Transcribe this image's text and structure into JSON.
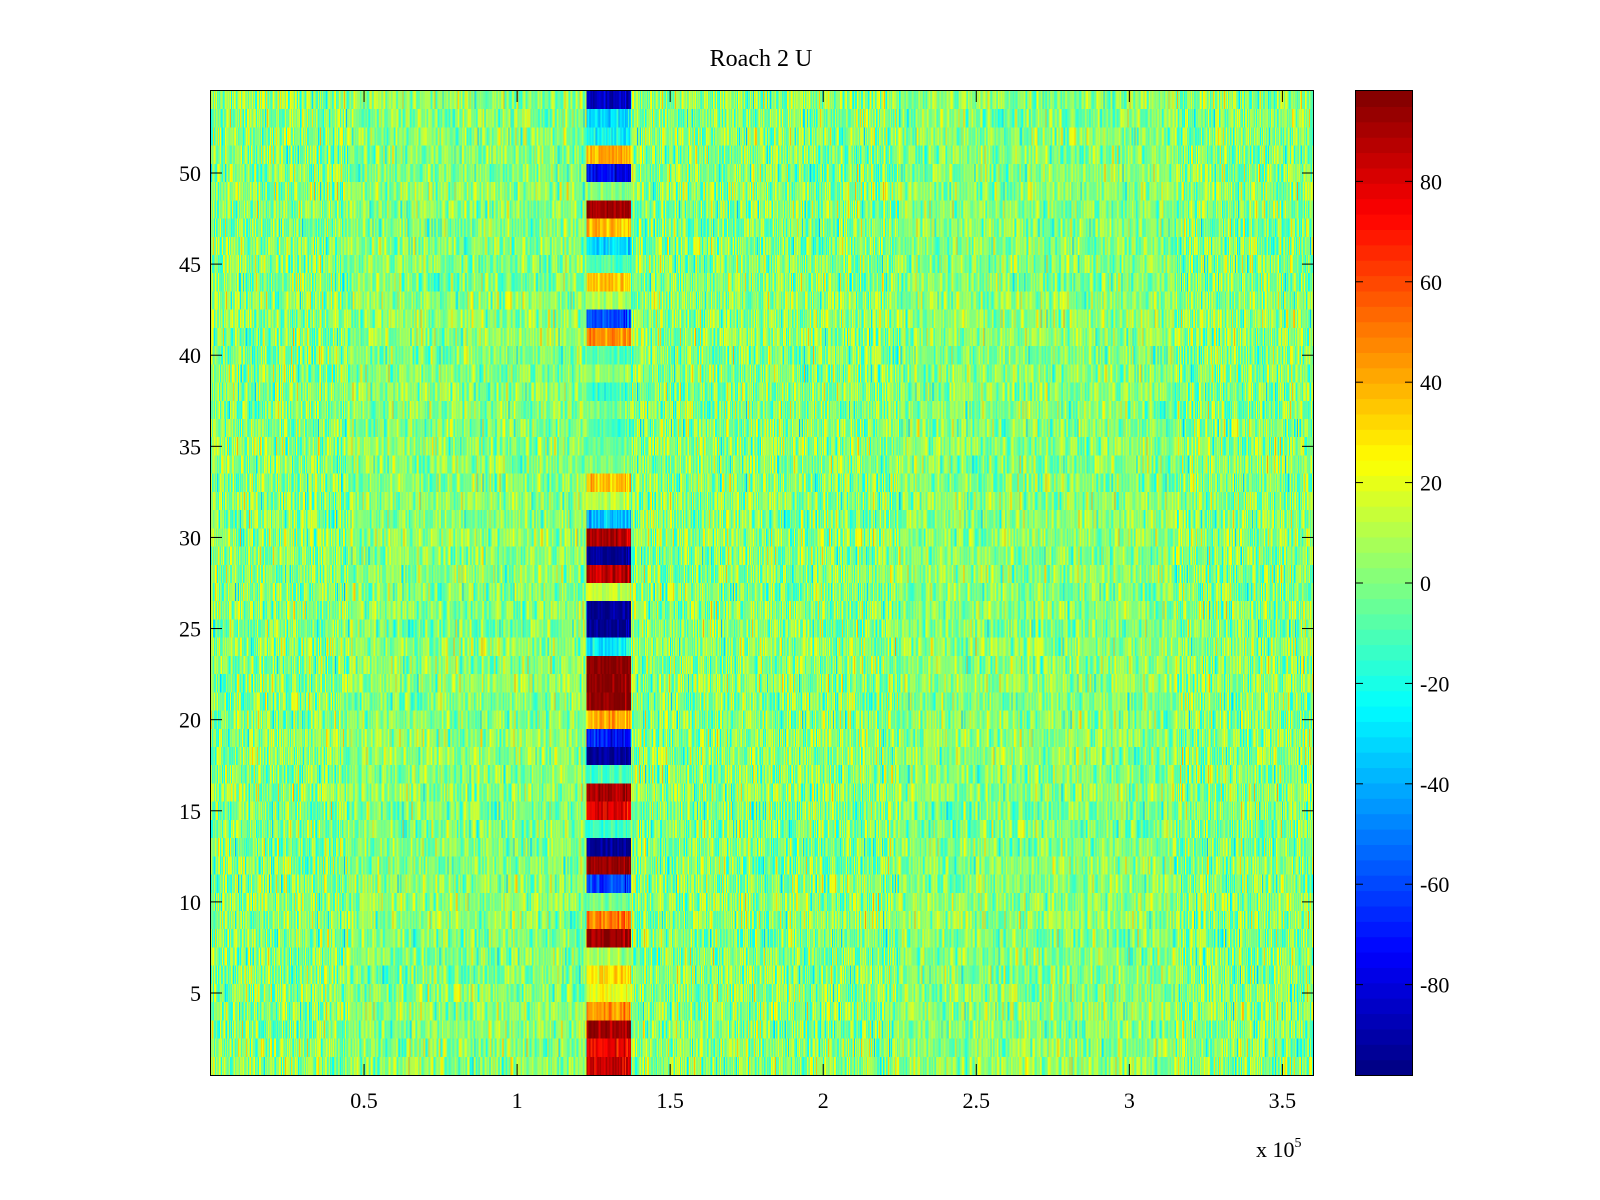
{
  "chart_data": {
    "type": "heatmap",
    "title": "Roach 2 U",
    "xlabel": "",
    "ylabel": "",
    "x_multiplier_label": "x 10",
    "x_multiplier_exponent": "5",
    "xlim": [
      0,
      360000
    ],
    "ylim": [
      0.5,
      54.5
    ],
    "xticks": [
      {
        "value": 0.5,
        "label": "0.5"
      },
      {
        "value": 1,
        "label": "1"
      },
      {
        "value": 1.5,
        "label": "1.5"
      },
      {
        "value": 2,
        "label": "2"
      },
      {
        "value": 2.5,
        "label": "2.5"
      },
      {
        "value": 3,
        "label": "3"
      },
      {
        "value": 3.5,
        "label": "3.5"
      }
    ],
    "yticks": [
      {
        "value": 5,
        "label": "5"
      },
      {
        "value": 10,
        "label": "10"
      },
      {
        "value": 15,
        "label": "15"
      },
      {
        "value": 20,
        "label": "20"
      },
      {
        "value": 25,
        "label": "25"
      },
      {
        "value": 30,
        "label": "30"
      },
      {
        "value": 35,
        "label": "35"
      },
      {
        "value": 40,
        "label": "40"
      },
      {
        "value": 45,
        "label": "45"
      },
      {
        "value": 50,
        "label": "50"
      }
    ],
    "colorbar": {
      "colormap": "jet",
      "clim": [
        -98,
        98
      ],
      "ticks": [
        {
          "value": 80,
          "label": "80"
        },
        {
          "value": 60,
          "label": "60"
        },
        {
          "value": 40,
          "label": "40"
        },
        {
          "value": 20,
          "label": "20"
        },
        {
          "value": 0,
          "label": "0"
        },
        {
          "value": -20,
          "label": "-20"
        },
        {
          "value": -40,
          "label": "-40"
        },
        {
          "value": -60,
          "label": "-60"
        },
        {
          "value": -80,
          "label": "-80"
        }
      ]
    },
    "background_noise": {
      "mean": 2,
      "spread": 14
    },
    "event_band": {
      "x_start": 123000,
      "x_end": 137000,
      "rows": [
        {
          "row": 1,
          "value": 85
        },
        {
          "row": 2,
          "value": 75
        },
        {
          "row": 3,
          "value": 95
        },
        {
          "row": 4,
          "value": 45
        },
        {
          "row": 5,
          "value": 20
        },
        {
          "row": 6,
          "value": 30
        },
        {
          "row": 7,
          "value": 5
        },
        {
          "row": 8,
          "value": 95
        },
        {
          "row": 9,
          "value": 50
        },
        {
          "row": 10,
          "value": 0
        },
        {
          "row": 11,
          "value": -60
        },
        {
          "row": 12,
          "value": 95
        },
        {
          "row": 13,
          "value": -95
        },
        {
          "row": 14,
          "value": -15
        },
        {
          "row": 15,
          "value": 80
        },
        {
          "row": 16,
          "value": 90
        },
        {
          "row": 17,
          "value": -10
        },
        {
          "row": 18,
          "value": -95
        },
        {
          "row": 19,
          "value": -70
        },
        {
          "row": 20,
          "value": 40
        },
        {
          "row": 21,
          "value": 98
        },
        {
          "row": 22,
          "value": 98
        },
        {
          "row": 23,
          "value": 98
        },
        {
          "row": 24,
          "value": -25
        },
        {
          "row": 25,
          "value": -95
        },
        {
          "row": 26,
          "value": -95
        },
        {
          "row": 27,
          "value": 15
        },
        {
          "row": 28,
          "value": 90
        },
        {
          "row": 29,
          "value": -95
        },
        {
          "row": 30,
          "value": 90
        },
        {
          "row": 31,
          "value": -35
        },
        {
          "row": 32,
          "value": 10
        },
        {
          "row": 33,
          "value": 35
        },
        {
          "row": 34,
          "value": 0
        },
        {
          "row": 35,
          "value": -5
        },
        {
          "row": 36,
          "value": -10
        },
        {
          "row": 37,
          "value": 0
        },
        {
          "row": 38,
          "value": -15
        },
        {
          "row": 39,
          "value": 5
        },
        {
          "row": 40,
          "value": -10
        },
        {
          "row": 41,
          "value": 45
        },
        {
          "row": 42,
          "value": -60
        },
        {
          "row": 43,
          "value": 10
        },
        {
          "row": 44,
          "value": 35
        },
        {
          "row": 45,
          "value": -10
        },
        {
          "row": 46,
          "value": -30
        },
        {
          "row": 47,
          "value": 40
        },
        {
          "row": 48,
          "value": 90
        },
        {
          "row": 49,
          "value": 0
        },
        {
          "row": 50,
          "value": -75
        },
        {
          "row": 51,
          "value": 40
        },
        {
          "row": 52,
          "value": -25
        },
        {
          "row": 53,
          "value": -30
        },
        {
          "row": 54,
          "value": -85
        }
      ]
    }
  }
}
